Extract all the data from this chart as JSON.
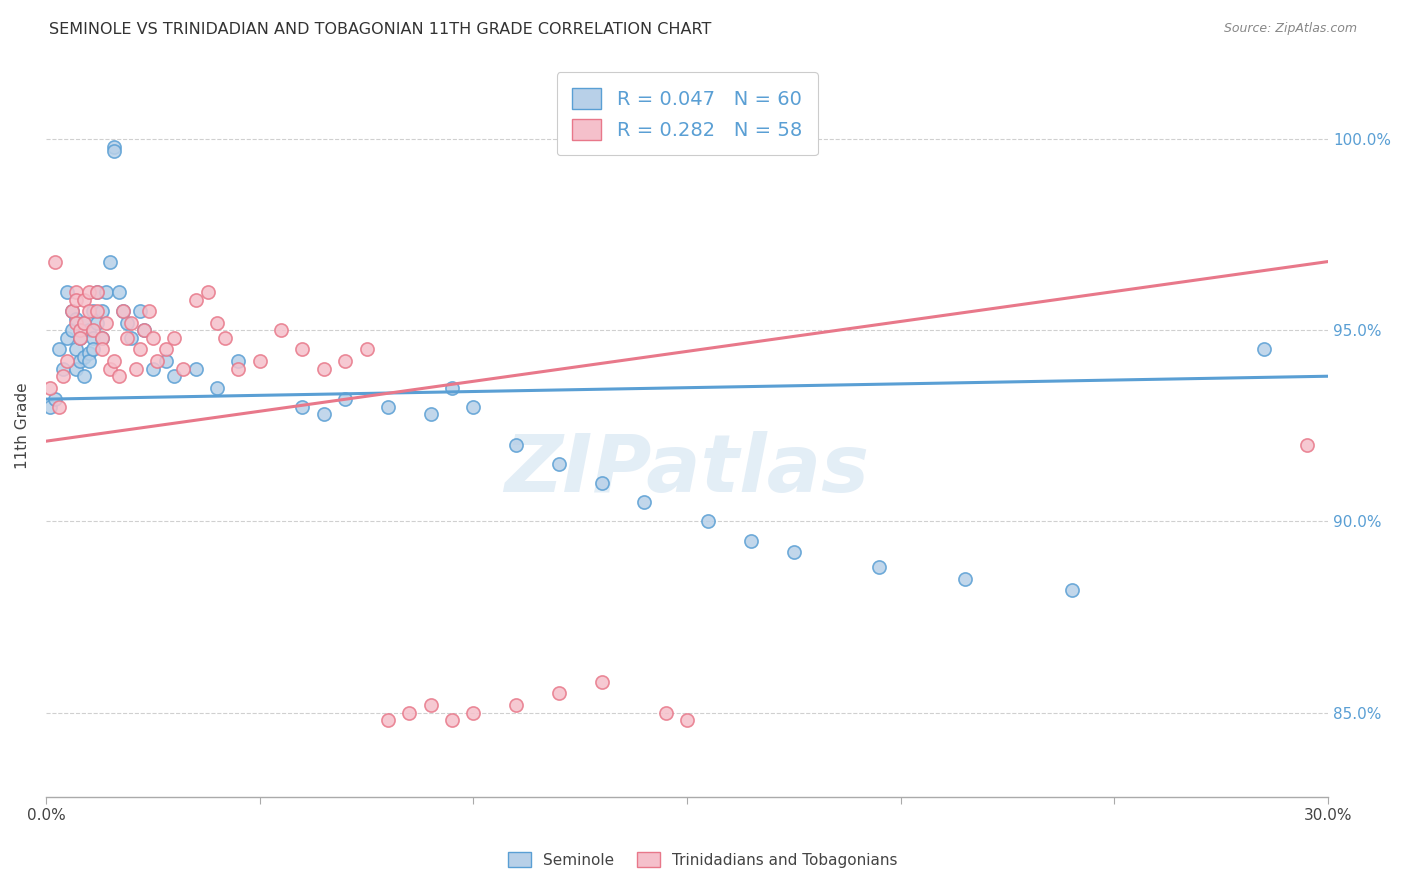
{
  "title": "SEMINOLE VS TRINIDADIAN AND TOBAGONIAN 11TH GRADE CORRELATION CHART",
  "source_text": "Source: ZipAtlas.com",
  "ylabel": "11th Grade",
  "ytick_labels": [
    "85.0%",
    "90.0%",
    "95.0%",
    "100.0%"
  ],
  "ytick_values": [
    0.85,
    0.9,
    0.95,
    1.0
  ],
  "xlim": [
    0.0,
    0.3
  ],
  "ylim": [
    0.828,
    1.022
  ],
  "legend_blue_label": "R = 0.047   N = 60",
  "legend_pink_label": "R = 0.282   N = 58",
  "legend_seminole": "Seminole",
  "legend_trinidadian": "Trinidadians and Tobagonians",
  "blue_color": "#b8d0e8",
  "pink_color": "#f5c0cb",
  "blue_edge_color": "#5a9fd4",
  "pink_edge_color": "#e8788a",
  "blue_line_color": "#5a9fd4",
  "pink_line_color": "#e8788a",
  "blue_scatter": [
    [
      0.001,
      0.93
    ],
    [
      0.002,
      0.932
    ],
    [
      0.003,
      0.945
    ],
    [
      0.004,
      0.94
    ],
    [
      0.005,
      0.96
    ],
    [
      0.005,
      0.948
    ],
    [
      0.006,
      0.955
    ],
    [
      0.006,
      0.95
    ],
    [
      0.007,
      0.953
    ],
    [
      0.007,
      0.945
    ],
    [
      0.007,
      0.94
    ],
    [
      0.008,
      0.948
    ],
    [
      0.008,
      0.942
    ],
    [
      0.009,
      0.952
    ],
    [
      0.009,
      0.943
    ],
    [
      0.009,
      0.938
    ],
    [
      0.01,
      0.95
    ],
    [
      0.01,
      0.944
    ],
    [
      0.01,
      0.942
    ],
    [
      0.011,
      0.955
    ],
    [
      0.011,
      0.948
    ],
    [
      0.011,
      0.945
    ],
    [
      0.012,
      0.96
    ],
    [
      0.012,
      0.952
    ],
    [
      0.013,
      0.955
    ],
    [
      0.013,
      0.948
    ],
    [
      0.014,
      0.96
    ],
    [
      0.015,
      0.968
    ],
    [
      0.016,
      0.998
    ],
    [
      0.016,
      0.997
    ],
    [
      0.017,
      0.96
    ],
    [
      0.018,
      0.955
    ],
    [
      0.019,
      0.952
    ],
    [
      0.02,
      0.948
    ],
    [
      0.022,
      0.955
    ],
    [
      0.023,
      0.95
    ],
    [
      0.025,
      0.94
    ],
    [
      0.028,
      0.942
    ],
    [
      0.03,
      0.938
    ],
    [
      0.035,
      0.94
    ],
    [
      0.04,
      0.935
    ],
    [
      0.045,
      0.942
    ],
    [
      0.06,
      0.93
    ],
    [
      0.065,
      0.928
    ],
    [
      0.07,
      0.932
    ],
    [
      0.08,
      0.93
    ],
    [
      0.09,
      0.928
    ],
    [
      0.095,
      0.935
    ],
    [
      0.1,
      0.93
    ],
    [
      0.11,
      0.92
    ],
    [
      0.12,
      0.915
    ],
    [
      0.13,
      0.91
    ],
    [
      0.14,
      0.905
    ],
    [
      0.155,
      0.9
    ],
    [
      0.165,
      0.895
    ],
    [
      0.175,
      0.892
    ],
    [
      0.195,
      0.888
    ],
    [
      0.215,
      0.885
    ],
    [
      0.24,
      0.882
    ],
    [
      0.285,
      0.945
    ]
  ],
  "pink_scatter": [
    [
      0.001,
      0.935
    ],
    [
      0.002,
      0.968
    ],
    [
      0.003,
      0.93
    ],
    [
      0.004,
      0.938
    ],
    [
      0.005,
      0.942
    ],
    [
      0.006,
      0.955
    ],
    [
      0.007,
      0.96
    ],
    [
      0.007,
      0.958
    ],
    [
      0.007,
      0.952
    ],
    [
      0.008,
      0.95
    ],
    [
      0.008,
      0.948
    ],
    [
      0.009,
      0.958
    ],
    [
      0.009,
      0.952
    ],
    [
      0.01,
      0.96
    ],
    [
      0.01,
      0.955
    ],
    [
      0.011,
      0.95
    ],
    [
      0.012,
      0.955
    ],
    [
      0.012,
      0.96
    ],
    [
      0.013,
      0.948
    ],
    [
      0.013,
      0.945
    ],
    [
      0.014,
      0.952
    ],
    [
      0.015,
      0.94
    ],
    [
      0.016,
      0.942
    ],
    [
      0.017,
      0.938
    ],
    [
      0.018,
      0.955
    ],
    [
      0.019,
      0.948
    ],
    [
      0.02,
      0.952
    ],
    [
      0.021,
      0.94
    ],
    [
      0.022,
      0.945
    ],
    [
      0.023,
      0.95
    ],
    [
      0.024,
      0.955
    ],
    [
      0.025,
      0.948
    ],
    [
      0.026,
      0.942
    ],
    [
      0.028,
      0.945
    ],
    [
      0.03,
      0.948
    ],
    [
      0.032,
      0.94
    ],
    [
      0.035,
      0.958
    ],
    [
      0.038,
      0.96
    ],
    [
      0.04,
      0.952
    ],
    [
      0.042,
      0.948
    ],
    [
      0.045,
      0.94
    ],
    [
      0.05,
      0.942
    ],
    [
      0.055,
      0.95
    ],
    [
      0.06,
      0.945
    ],
    [
      0.065,
      0.94
    ],
    [
      0.07,
      0.942
    ],
    [
      0.075,
      0.945
    ],
    [
      0.08,
      0.848
    ],
    [
      0.085,
      0.85
    ],
    [
      0.09,
      0.852
    ],
    [
      0.095,
      0.848
    ],
    [
      0.1,
      0.85
    ],
    [
      0.11,
      0.852
    ],
    [
      0.12,
      0.855
    ],
    [
      0.13,
      0.858
    ],
    [
      0.145,
      0.85
    ],
    [
      0.15,
      0.848
    ],
    [
      0.295,
      0.92
    ]
  ],
  "blue_line_x": [
    0.0,
    0.3
  ],
  "blue_line_y": [
    0.932,
    0.938
  ],
  "pink_line_x": [
    0.0,
    0.3
  ],
  "pink_line_y": [
    0.921,
    0.968
  ],
  "watermark": "ZIPatlas",
  "grid_color": "#d0d0d0",
  "background_color": "#ffffff"
}
